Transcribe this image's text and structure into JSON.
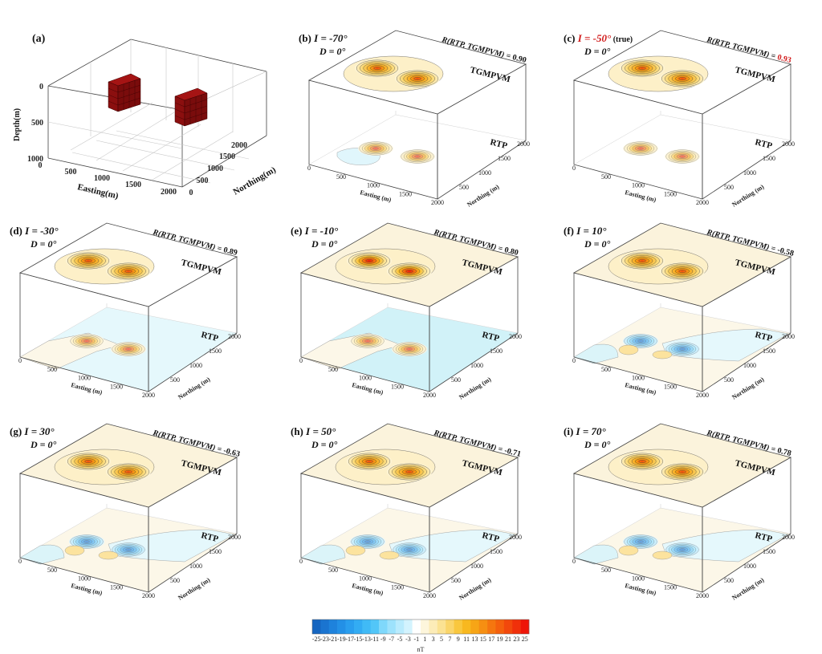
{
  "chart_data": {
    "type": "heatmap",
    "title": "",
    "model_panel": {
      "label": "(a)",
      "axes": {
        "depth_label": "Depth(m)",
        "easting_label": "Easting(m)",
        "northing_label": "Northing(m)",
        "depth_ticks": [
          "0",
          "500",
          "1000"
        ],
        "easting_ticks": [
          "0",
          "500",
          "1000",
          "1500",
          "2000"
        ],
        "northing_ticks": [
          "0",
          "500",
          "1000",
          "1500",
          "2000"
        ]
      },
      "bodies": [
        {
          "name": "cube-1",
          "color": "#8b0f0f"
        },
        {
          "name": "cube-2",
          "color": "#8b0f0f"
        }
      ]
    },
    "panels": [
      {
        "id": "b",
        "label": "(b)",
        "inclination": "I = -70°",
        "declination": "D = 0°",
        "true_note": "",
        "corr_prefix": "R(RTP, TGMPVM) = ",
        "corr_value": "0.90",
        "corr_highlight": false,
        "inc_highlight": false,
        "pattern": "positive-weak-negative",
        "rtp_background": "none"
      },
      {
        "id": "c",
        "label": "(c)",
        "inclination": "I = -50°",
        "declination": "D = 0°",
        "true_note": "(true)",
        "corr_prefix": "R(RTP, TGMPVM) = ",
        "corr_value": "0.93",
        "corr_highlight": true,
        "inc_highlight": true,
        "pattern": "positive",
        "rtp_background": "none"
      },
      {
        "id": "d",
        "label": "(d)",
        "inclination": "I = -30°",
        "declination": "D = 0°",
        "true_note": "",
        "corr_prefix": "R(RTP, TGMPVM) = ",
        "corr_value": "0.89",
        "corr_highlight": false,
        "inc_highlight": false,
        "pattern": "positive",
        "rtp_background": "light-blue"
      },
      {
        "id": "e",
        "label": "(e)",
        "inclination": "I = -10°",
        "declination": "D = 0°",
        "true_note": "",
        "corr_prefix": "R(RTP, TGMPVM) = ",
        "corr_value": "0.80",
        "corr_highlight": false,
        "inc_highlight": false,
        "pattern": "positive-strong",
        "rtp_background": "blue"
      },
      {
        "id": "f",
        "label": "(f)",
        "inclination": "I = 10°",
        "declination": "D = 0°",
        "true_note": "",
        "corr_prefix": "R(RTP, TGMPVM) = ",
        "corr_value": "-0.58",
        "corr_highlight": false,
        "inc_highlight": false,
        "pattern": "negative-streak",
        "rtp_background": "cream"
      },
      {
        "id": "g",
        "label": "(g)",
        "inclination": "I = 30°",
        "declination": "D = 0°",
        "true_note": "",
        "corr_prefix": "R(RTP, TGMPVM) = ",
        "corr_value": "-0.63",
        "corr_highlight": false,
        "inc_highlight": false,
        "pattern": "negative",
        "rtp_background": "cream"
      },
      {
        "id": "h",
        "label": "(h)",
        "inclination": "I = 50°",
        "declination": "D = 0°",
        "true_note": "",
        "corr_prefix": "R(RTP, TGMPVM) = ",
        "corr_value": "-0.71",
        "corr_highlight": false,
        "inc_highlight": false,
        "pattern": "negative",
        "rtp_background": "cream"
      },
      {
        "id": "i",
        "label": "(i)",
        "inclination": "I = 70°",
        "declination": "D = 0°",
        "true_note": "",
        "corr_prefix": "R(RTP, TGMPVM) = ",
        "corr_value": "0.78",
        "corr_highlight": false,
        "inc_highlight": false,
        "pattern": "negative",
        "rtp_background": "cream"
      }
    ],
    "panel_labels": {
      "top_surface": "TGMPVM",
      "bottom_surface": "RTP",
      "easting_label": "Easting (m)",
      "northing_label": "Northing (m)",
      "easting_ticks": [
        "0",
        "500",
        "1000",
        "1500",
        "2000"
      ],
      "northing_ticks": [
        "500",
        "1000",
        "1500",
        "2000"
      ]
    },
    "colorbar": {
      "label": "nT",
      "range": [
        -26,
        26
      ],
      "tick_labels": [
        "-25",
        "-23",
        "-21",
        "-19",
        "-17",
        "-15",
        "-13",
        "-11",
        "-9",
        "-7",
        "-5",
        "-3",
        "-1",
        "1",
        "3",
        "5",
        "7",
        "9",
        "11",
        "13",
        "15",
        "17",
        "19",
        "21",
        "23",
        "25"
      ],
      "colors": [
        "#1565c0",
        "#1a74d0",
        "#1e82dc",
        "#2390e6",
        "#2a9eee",
        "#33acf3",
        "#40baf6",
        "#52c6f8",
        "#7fd8fb",
        "#9de2fc",
        "#b9ebfd",
        "#d3f3fe",
        "#ffffff",
        "#fdf6dc",
        "#fcecb8",
        "#fbe293",
        "#fad56a",
        "#f9c73e",
        "#f8b81f",
        "#f7a516",
        "#f68f12",
        "#f5760f",
        "#f4600d",
        "#f2480c",
        "#f0300a",
        "#ee1508"
      ]
    },
    "accent_color": "#d11a1a"
  }
}
